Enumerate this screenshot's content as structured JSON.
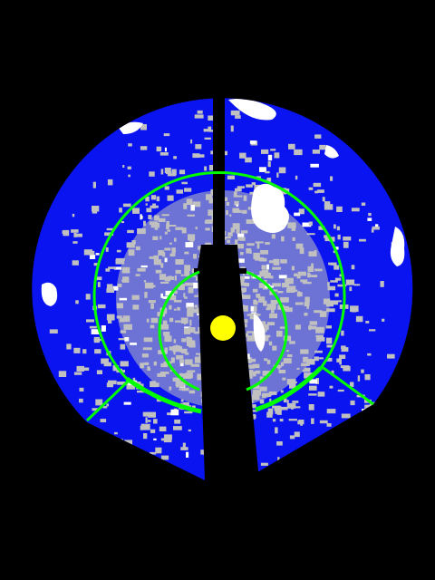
{
  "colors": {
    "background": "#000000",
    "sky": "#0a14f0",
    "cloud": "#c0c0c0",
    "cloud_bright": "#ffffff",
    "rings": "#00ff00",
    "sun": "#ffff00",
    "arm": "#000000"
  },
  "sky_view": {
    "has_sun": true,
    "ring_count": 2,
    "sector_cut": "bottom"
  }
}
